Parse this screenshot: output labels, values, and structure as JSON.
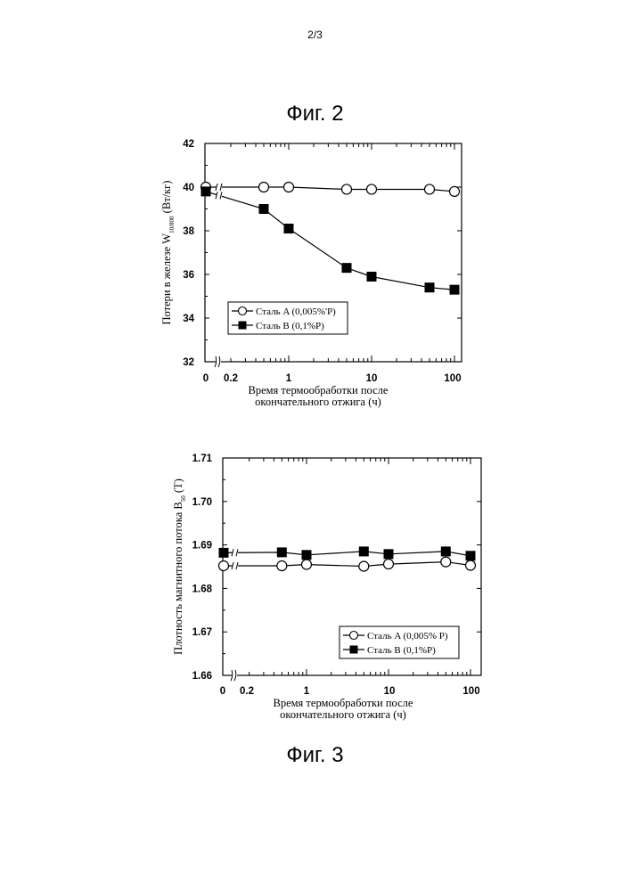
{
  "page_number": "2/3",
  "figures": {
    "fig2": {
      "title": "Фиг. 2"
    },
    "fig3": {
      "title": "Фиг. 3"
    }
  },
  "colors": {
    "line": "#000000",
    "background": "#ffffff"
  },
  "chart_data": [
    {
      "id": "fig2",
      "type": "line",
      "x_scale": "log with zero break",
      "x_ticks": [
        "0",
        "0.2",
        "1",
        "10",
        "100"
      ],
      "y_ticks": [
        "32",
        "34",
        "36",
        "38",
        "40",
        "42"
      ],
      "ylim": [
        32,
        42
      ],
      "xlabel_lines": [
        "Время термообработки после",
        "окончательного отжига (ч)"
      ],
      "ylabel_main": "Потери в железе W",
      "ylabel_sub": "10/800",
      "ylabel_unit": " (Вт/кг)",
      "legend_position": "lower-left",
      "grid": false,
      "series": [
        {
          "name": "Сталь A (0,005%'P)",
          "marker": "open-circle",
          "x": [
            0,
            0.5,
            1,
            5,
            10,
            50,
            100
          ],
          "y": [
            40.0,
            40.0,
            40.0,
            39.9,
            39.9,
            39.9,
            39.8
          ]
        },
        {
          "name": "Сталь B (0,1%P)",
          "marker": "filled-square",
          "x": [
            0,
            0.5,
            1,
            5,
            10,
            50,
            100
          ],
          "y": [
            39.8,
            39.0,
            38.1,
            36.3,
            35.9,
            35.4,
            35.3
          ]
        }
      ]
    },
    {
      "id": "fig3",
      "type": "line",
      "x_scale": "log with zero break",
      "x_ticks": [
        "0",
        "0.2",
        "1",
        "10",
        "100"
      ],
      "y_ticks": [
        "1.66",
        "1.67",
        "1.68",
        "1.69",
        "1.70",
        "1.71"
      ],
      "ylim": [
        1.66,
        1.71
      ],
      "xlabel_lines": [
        "Время термообработки после",
        "окончательного отжига (ч)"
      ],
      "ylabel_main": "Плотность магнитного потока B",
      "ylabel_sub": "50",
      "ylabel_unit": " (Т)",
      "legend_position": "lower-right",
      "grid": false,
      "series": [
        {
          "name": "Сталь A (0,005% P)",
          "marker": "open-circle",
          "x": [
            0,
            0.5,
            1,
            5,
            10,
            50,
            100
          ],
          "y": [
            1.6852,
            1.6852,
            1.6855,
            1.6851,
            1.6856,
            1.6861,
            1.6853
          ]
        },
        {
          "name": "Сталь B (0,1%P)",
          "marker": "filled-square",
          "x": [
            0,
            0.5,
            1,
            5,
            10,
            50,
            100
          ],
          "y": [
            1.6882,
            1.6883,
            1.6877,
            1.6885,
            1.6879,
            1.6885,
            1.6875
          ]
        }
      ]
    }
  ]
}
